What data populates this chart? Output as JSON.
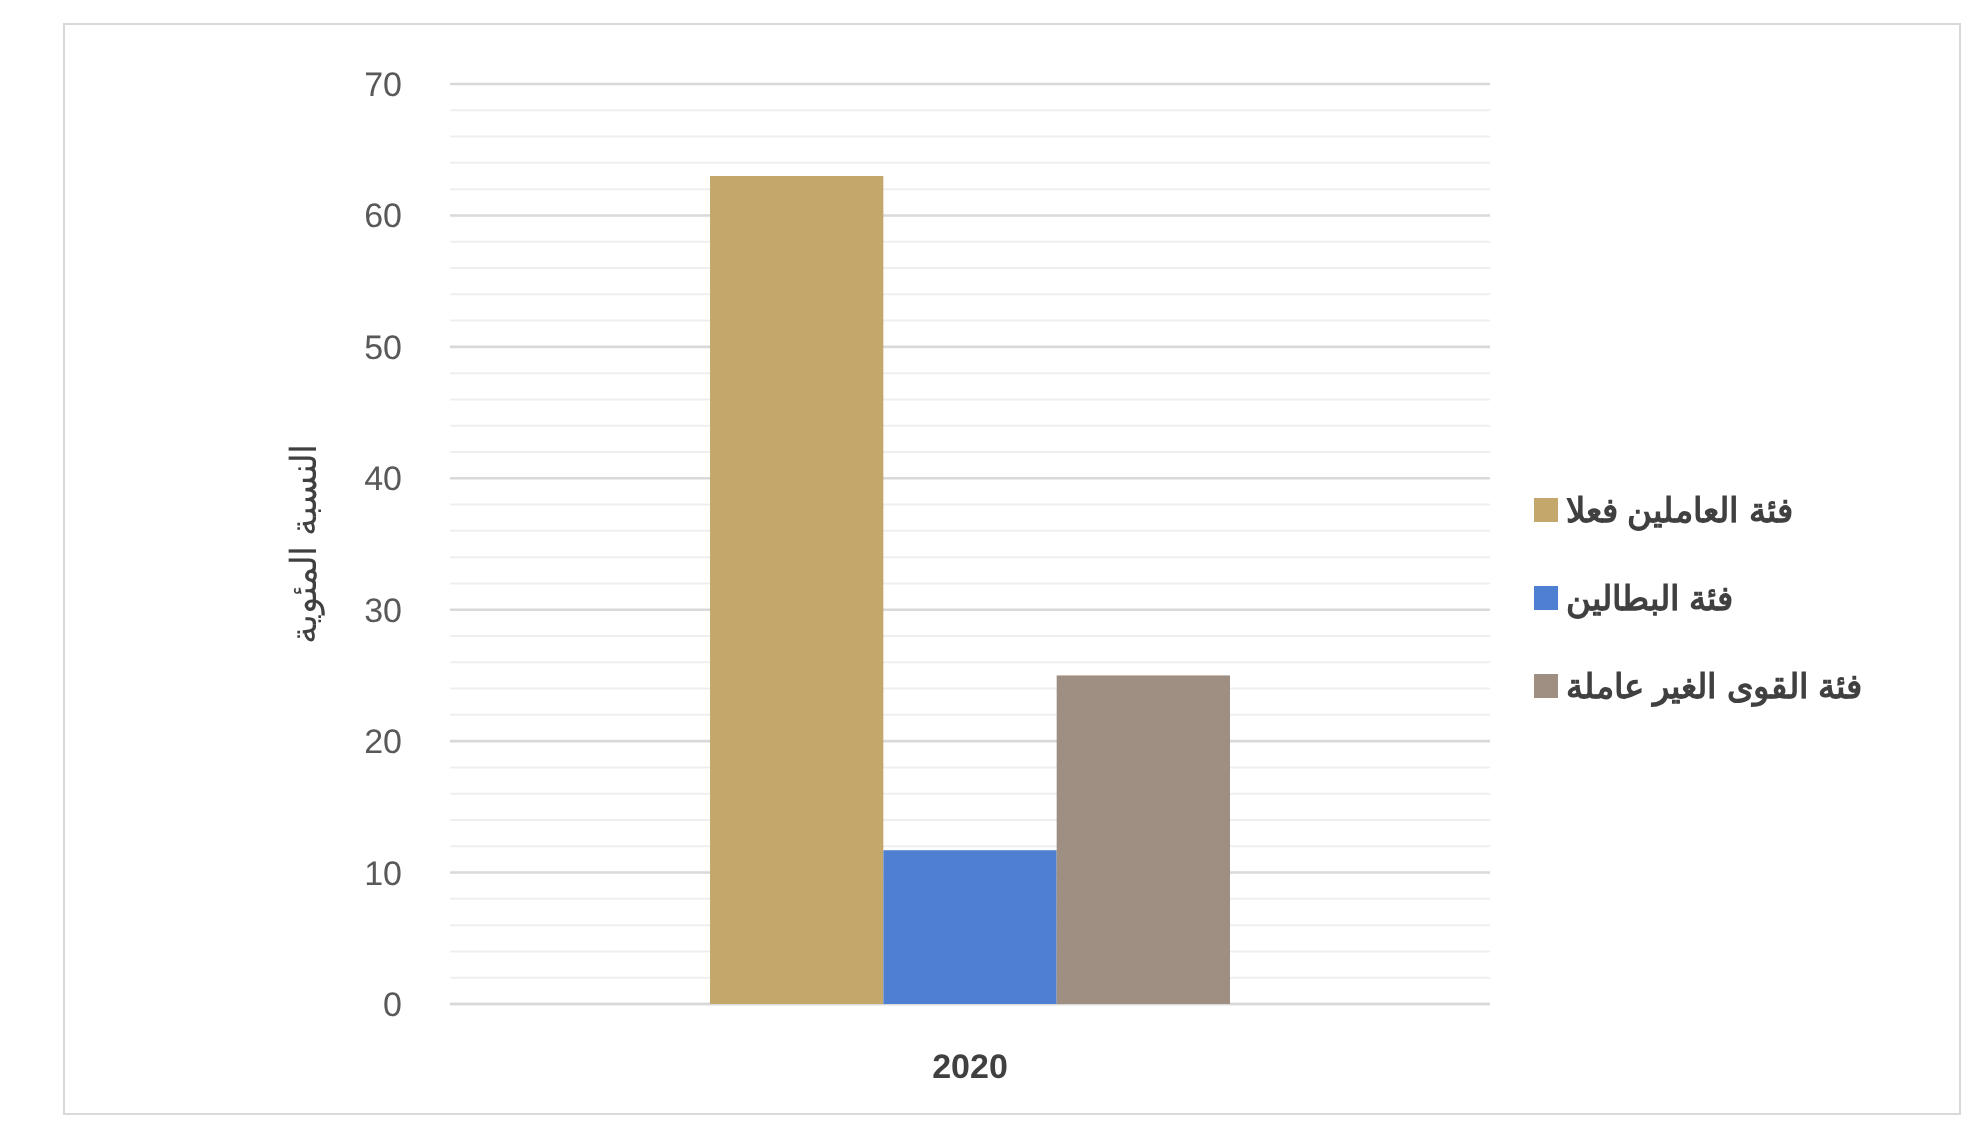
{
  "chart_data": {
    "type": "bar",
    "ylabel": "النسبة المئوية",
    "categories": [
      "2020"
    ],
    "series": [
      {
        "name": "فئة العاملين فعلا",
        "color": "#c4a76a",
        "values": [
          63
        ]
      },
      {
        "name": "فئة البطالين",
        "color": "#4f7fd0",
        "values": [
          11.7
        ]
      },
      {
        "name": "فئة القوى الغير عاملة",
        "color": "#9e8f82",
        "values": [
          25
        ]
      }
    ],
    "ylim": [
      0,
      70
    ],
    "yticks": [
      0,
      {
        "value": 2,
        "label": null
      },
      {
        "value": 4,
        "label": null
      },
      {
        "value": 6,
        "label": null
      },
      {
        "value": 8,
        "label": null
      },
      10,
      {
        "value": 12,
        "label": null
      },
      {
        "value": 14,
        "label": null
      },
      {
        "value": 16,
        "label": null
      },
      {
        "value": 18,
        "label": null
      },
      20,
      {
        "value": 22,
        "label": null
      },
      {
        "value": 24,
        "label": null
      },
      {
        "value": 26,
        "label": null
      },
      {
        "value": 28,
        "label": null
      },
      30,
      {
        "value": 32,
        "label": null
      },
      {
        "value": 34,
        "label": null
      },
      {
        "value": 36,
        "label": null
      },
      {
        "value": 38,
        "label": null
      },
      40,
      {
        "value": 42,
        "label": null
      },
      {
        "value": 44,
        "label": null
      },
      {
        "value": 46,
        "label": null
      },
      {
        "value": 48,
        "label": null
      },
      50,
      {
        "value": 52,
        "label": null
      },
      {
        "value": 54,
        "label": null
      },
      {
        "value": 56,
        "label": null
      },
      {
        "value": 58,
        "label": null
      },
      60,
      {
        "value": 62,
        "label": null
      },
      {
        "value": 64,
        "label": null
      },
      {
        "value": 66,
        "label": null
      },
      {
        "value": 68,
        "label": null
      },
      70
    ],
    "grid": "y",
    "legend": "right"
  }
}
